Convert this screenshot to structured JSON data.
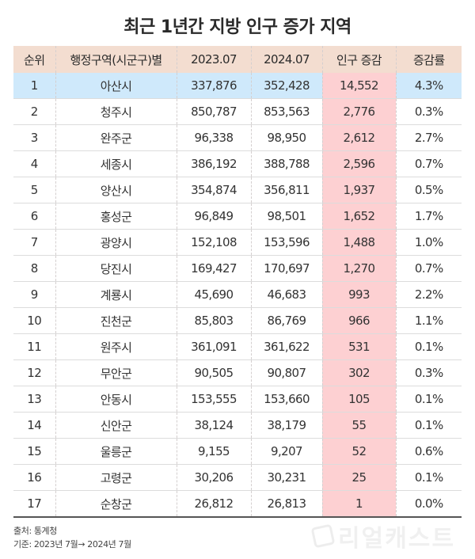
{
  "title": "최근 1년간 지방 인구 증가 지역",
  "table": {
    "headers": [
      "순위",
      "행정구역(시군구)별",
      "2023.07",
      "2024.07",
      "인구 증감",
      "증감률"
    ],
    "rows": [
      {
        "rank": "1",
        "region": "아산시",
        "pop_2023": "337,876",
        "pop_2024": "352,428",
        "change": "14,552",
        "rate": "4.3%"
      },
      {
        "rank": "2",
        "region": "청주시",
        "pop_2023": "850,787",
        "pop_2024": "853,563",
        "change": "2,776",
        "rate": "0.3%"
      },
      {
        "rank": "3",
        "region": "완주군",
        "pop_2023": "96,338",
        "pop_2024": "98,950",
        "change": "2,612",
        "rate": "2.7%"
      },
      {
        "rank": "4",
        "region": "세종시",
        "pop_2023": "386,192",
        "pop_2024": "388,788",
        "change": "2,596",
        "rate": "0.7%"
      },
      {
        "rank": "5",
        "region": "양산시",
        "pop_2023": "354,874",
        "pop_2024": "356,811",
        "change": "1,937",
        "rate": "0.5%"
      },
      {
        "rank": "6",
        "region": "홍성군",
        "pop_2023": "96,849",
        "pop_2024": "98,501",
        "change": "1,652",
        "rate": "1.7%"
      },
      {
        "rank": "7",
        "region": "광양시",
        "pop_2023": "152,108",
        "pop_2024": "153,596",
        "change": "1,488",
        "rate": "1.0%"
      },
      {
        "rank": "8",
        "region": "당진시",
        "pop_2023": "169,427",
        "pop_2024": "170,697",
        "change": "1,270",
        "rate": "0.7%"
      },
      {
        "rank": "9",
        "region": "계룡시",
        "pop_2023": "45,690",
        "pop_2024": "46,683",
        "change": "993",
        "rate": "2.2%"
      },
      {
        "rank": "10",
        "region": "진천군",
        "pop_2023": "85,803",
        "pop_2024": "86,769",
        "change": "966",
        "rate": "1.1%"
      },
      {
        "rank": "11",
        "region": "원주시",
        "pop_2023": "361,091",
        "pop_2024": "361,622",
        "change": "531",
        "rate": "0.1%"
      },
      {
        "rank": "12",
        "region": "무안군",
        "pop_2023": "90,505",
        "pop_2024": "90,807",
        "change": "302",
        "rate": "0.3%"
      },
      {
        "rank": "13",
        "region": "안동시",
        "pop_2023": "153,555",
        "pop_2024": "153,660",
        "change": "105",
        "rate": "0.1%"
      },
      {
        "rank": "14",
        "region": "신안군",
        "pop_2023": "38,124",
        "pop_2024": "38,179",
        "change": "55",
        "rate": "0.1%"
      },
      {
        "rank": "15",
        "region": "울릉군",
        "pop_2023": "9,155",
        "pop_2024": "9,207",
        "change": "52",
        "rate": "0.6%"
      },
      {
        "rank": "16",
        "region": "고령군",
        "pop_2023": "30,206",
        "pop_2024": "30,231",
        "change": "25",
        "rate": "0.1%"
      },
      {
        "rank": "17",
        "region": "순창군",
        "pop_2023": "26,812",
        "pop_2024": "26,813",
        "change": "1",
        "rate": "0.0%"
      }
    ]
  },
  "footer": {
    "source": "출처: 통계청",
    "basis": "기준: 2023년 7월→ 2024년 7월"
  },
  "watermark": {
    "text": "리얼캐스트",
    "icon": "realcast-logo-icon"
  },
  "colors": {
    "header_bg": "#f3ddd0",
    "highlight_row_bg": "#cfe9fb",
    "change_column_bg": "#fdd0d2",
    "text": "#2b2b2b"
  }
}
